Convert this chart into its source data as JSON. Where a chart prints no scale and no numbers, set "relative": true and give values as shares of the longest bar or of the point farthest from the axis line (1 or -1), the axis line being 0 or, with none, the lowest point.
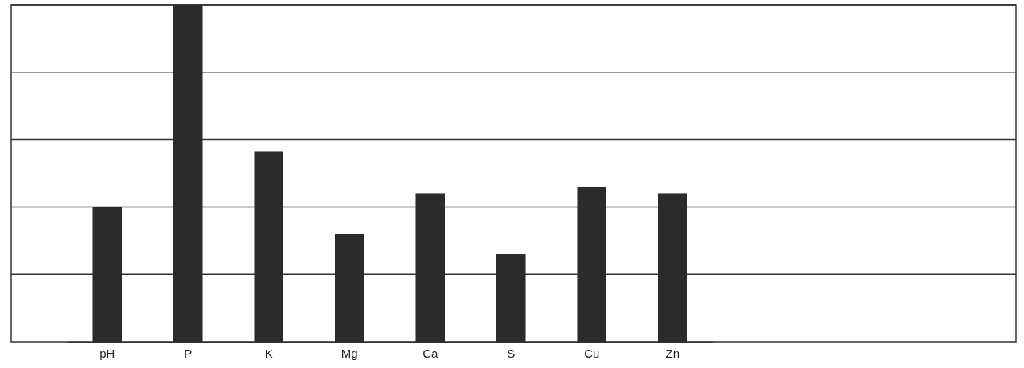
{
  "chart_data": {
    "type": "bar",
    "relative": true,
    "grid": "y",
    "categories": [
      "pH",
      "P",
      "K",
      "Mg",
      "Ca",
      "S",
      "Cu",
      "Zn"
    ],
    "values": [
      0.4,
      1,
      0.565,
      0.32,
      0.44,
      0.26,
      0.46,
      0.44
    ],
    "color": "#2b2b2b"
  }
}
